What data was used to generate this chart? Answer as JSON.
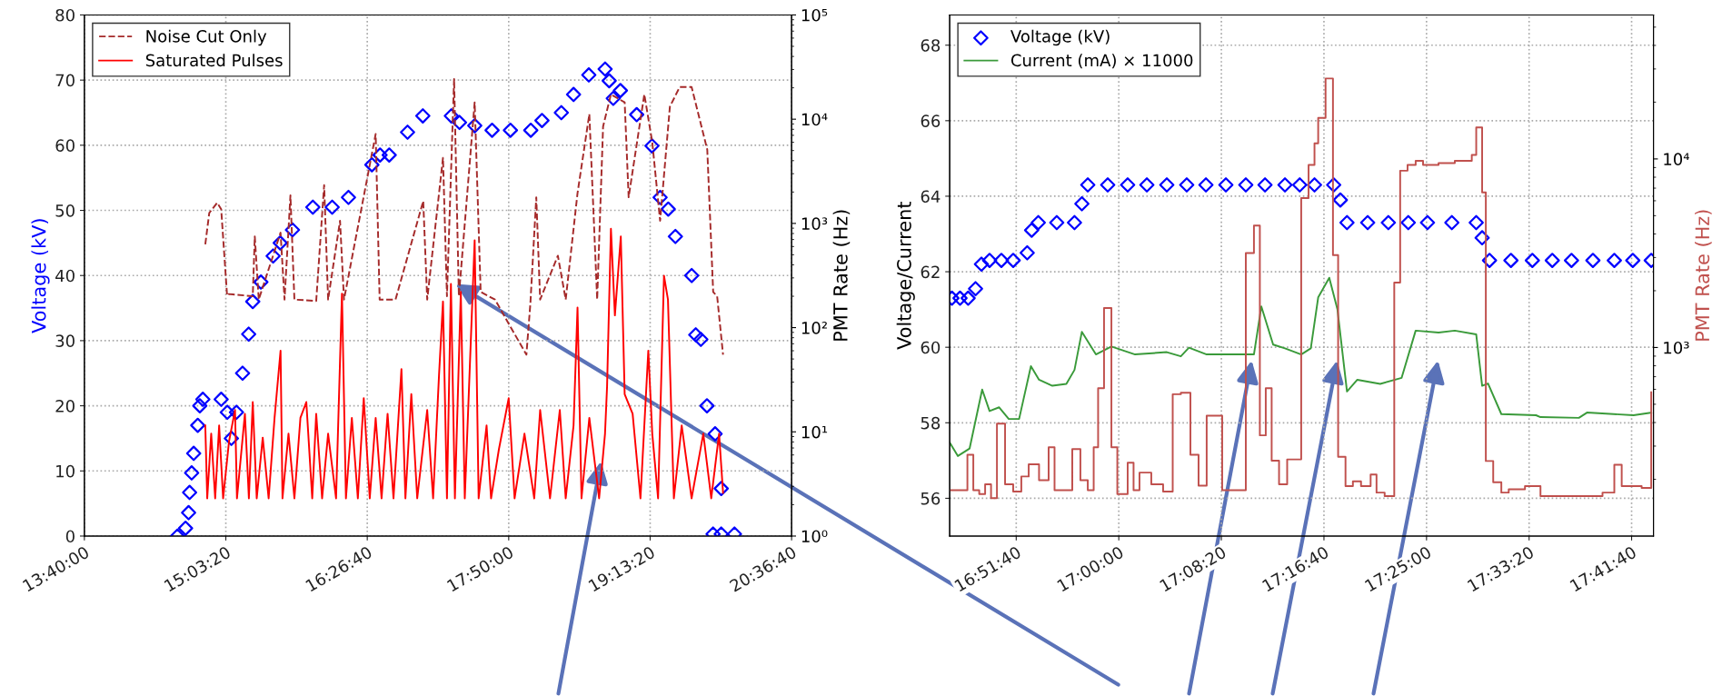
{
  "chart_data": [
    {
      "type": "scatter",
      "grid": true,
      "legend": "top left",
      "log": "y2",
      "ylabel": "Voltage (kV)",
      "y2label": "PMT Rate (Hz)",
      "xlim": [
        13.6667,
        20.6111
      ],
      "xticks": [
        {
          "value": 13.6667,
          "label": "13:40:00"
        },
        {
          "value": 15.0556,
          "label": "15:03:20"
        },
        {
          "value": 16.4444,
          "label": "16:26:40"
        },
        {
          "value": 17.8333,
          "label": "17:50:00"
        },
        {
          "value": 19.2222,
          "label": "19:13:20"
        },
        {
          "value": 20.6111,
          "label": "20:36:40"
        }
      ],
      "ylim": [
        0,
        80
      ],
      "yticks": [
        0,
        10,
        20,
        30,
        40,
        50,
        60,
        70,
        80
      ],
      "y2lim": [
        1,
        100000
      ],
      "y2ticks": [
        {
          "value": 1,
          "label": "10⁰"
        },
        {
          "value": 10,
          "label": "10¹"
        },
        {
          "value": 100,
          "label": "10²"
        },
        {
          "value": 1000,
          "label": "10³"
        },
        {
          "value": 10000,
          "label": "10⁴"
        },
        {
          "value": 100000,
          "label": "10⁵"
        }
      ],
      "series": [
        {
          "marker": "diamond",
          "color": "#0000ff",
          "x": [
            14.58,
            14.66,
            14.69,
            14.7,
            14.72,
            14.74,
            14.78,
            14.8,
            14.83,
            15.01,
            15.07,
            15.11,
            15.16,
            15.22,
            15.28,
            15.32,
            15.4,
            15.52,
            15.59,
            15.71,
            15.91,
            16.1,
            16.26,
            16.49,
            16.57,
            16.66,
            16.84,
            16.99,
            17.27,
            17.35,
            17.5,
            17.67,
            17.85,
            18.05,
            18.16,
            18.35,
            18.47,
            18.62,
            18.78,
            18.82,
            18.86,
            18.93,
            19.09,
            19.24,
            19.32,
            19.4,
            19.47,
            19.63,
            19.67,
            19.72,
            19.78,
            19.86,
            19.92,
            19.84,
            19.92,
            20.05
          ],
          "values": [
            0,
            1.2,
            3.6,
            6.7,
            9.7,
            12.7,
            17,
            20,
            21,
            21,
            19,
            15,
            19,
            25,
            31,
            36,
            39,
            43,
            45,
            47,
            50.5,
            50.5,
            52,
            57,
            58.5,
            58.5,
            62,
            64.5,
            64.5,
            63.5,
            63,
            62.3,
            62.3,
            62.3,
            63.8,
            65,
            67.8,
            70.8,
            71.7,
            69.9,
            67.2,
            68.4,
            64.7,
            59.9,
            52,
            50.2,
            46,
            40,
            30.9,
            30.2,
            20,
            15.7,
            7.3,
            0.3,
            0.3,
            0.3
          ]
        },
        {
          "type": "line",
          "name": "Noise Cut Only",
          "axis": "y2",
          "line_style": "dashed",
          "color": "#a52a2a",
          "x": [
            14.854,
            14.893,
            14.971,
            15.01,
            15.068,
            15.087,
            15.32,
            15.34,
            15.379,
            15.593,
            15.632,
            15.69,
            15.729,
            15.943,
            16.021,
            16.06,
            16.177,
            16.216,
            16.527,
            16.566,
            16.722,
            16.994,
            17.033,
            17.188,
            17.227,
            17.297,
            17.344,
            17.499,
            17.558,
            17.698,
            18.007,
            18.046,
            18.104,
            18.142,
            18.316,
            18.393,
            18.509,
            18.625,
            18.702,
            18.76,
            18.837,
            18.972,
            19.011,
            19.165,
            19.243,
            19.32,
            19.416,
            19.513,
            19.629,
            19.783,
            19.841,
            19.88,
            19.938
          ],
          "values": [
            630,
            1260,
            1580,
            1370,
            203,
            210,
            200,
            750,
            186,
            815,
            186,
            1860,
            186,
            180,
            2330,
            186,
            1060,
            186,
            7200,
            186,
            186,
            1640,
            186,
            4260,
            200,
            24300,
            200,
            14500,
            220,
            186,
            55,
            170,
            1780,
            186,
            490,
            186,
            1950,
            11200,
            186,
            8500,
            17300,
            14500,
            1780,
            17300,
            6000,
            1060,
            13200,
            20400,
            20400,
            5100,
            220,
            200,
            55
          ]
        },
        {
          "type": "line",
          "name": "Saturated Pulses",
          "axis": "y2",
          "line_style": "solid",
          "color": "#ff0000",
          "x": [
            14.854,
            14.873,
            14.912,
            14.951,
            14.99,
            15.029,
            15.087,
            15.146,
            15.165,
            15.243,
            15.282,
            15.32,
            15.359,
            15.418,
            15.476,
            15.534,
            15.593,
            15.612,
            15.671,
            15.729,
            15.788,
            15.846,
            15.904,
            15.943,
            16.001,
            16.06,
            16.138,
            16.196,
            16.235,
            16.293,
            16.352,
            16.41,
            16.469,
            16.527,
            16.585,
            16.644,
            16.702,
            16.78,
            16.819,
            16.877,
            16.935,
            17.033,
            17.091,
            17.149,
            17.188,
            17.227,
            17.266,
            17.305,
            17.363,
            17.402,
            17.499,
            17.538,
            17.616,
            17.66,
            17.737,
            17.833,
            17.891,
            17.988,
            18.084,
            18.142,
            18.239,
            18.335,
            18.393,
            18.47,
            18.509,
            18.548,
            18.625,
            18.721,
            18.779,
            18.799,
            18.837,
            18.876,
            18.934,
            18.972,
            19.05,
            19.127,
            19.204,
            19.243,
            19.3,
            19.358,
            19.397,
            19.455,
            19.532,
            19.629,
            19.744,
            19.822,
            19.899,
            19.938
          ],
          "values": [
            11.5,
            2.3,
            9.6,
            2.3,
            11.5,
            2.3,
            8.1,
            16.2,
            2.3,
            14.9,
            2.3,
            19.3,
            2.3,
            8.8,
            2.3,
            13.6,
            60,
            2.3,
            9.6,
            2.3,
            13.6,
            19.3,
            2.3,
            14.9,
            2.3,
            9.6,
            2.3,
            212,
            2.3,
            13.6,
            2.3,
            21,
            2.3,
            13.6,
            2.3,
            14.9,
            2.3,
            40,
            2.3,
            23,
            2.3,
            16.2,
            2.3,
            35,
            178,
            2.3,
            263,
            2.3,
            220,
            2.3,
            690,
            2.3,
            11.5,
            2.3,
            6.8,
            21,
            2.3,
            9.6,
            2.3,
            16.2,
            2.3,
            16.2,
            2.3,
            11.5,
            156,
            2.3,
            13.6,
            2.3,
            9.6,
            27,
            890,
            131,
            750,
            23,
            14.9,
            2.3,
            60,
            9.6,
            2.3,
            315,
            186,
            2.3,
            11.5,
            2.3,
            9.6,
            2.3,
            9.6,
            2.6
          ]
        }
      ]
    },
    {
      "type": "line",
      "grid": true,
      "legend": "top left",
      "log": "y2",
      "ylabel": "Voltage/Current",
      "y2label": "PMT Rate (Hz)",
      "xlim": [
        16.771,
        17.724
      ],
      "xticks": [
        {
          "value": 16.8611,
          "label": "16:51:40"
        },
        {
          "value": 17.0,
          "label": "17:00:00"
        },
        {
          "value": 17.1389,
          "label": "17:08:20"
        },
        {
          "value": 17.2778,
          "label": "17:16:40"
        },
        {
          "value": 17.4167,
          "label": "17:25:00"
        },
        {
          "value": 17.5556,
          "label": "17:33:20"
        },
        {
          "value": 17.6944,
          "label": "17:41:40"
        }
      ],
      "ylim": [
        55,
        68.8
      ],
      "yticks": [
        56,
        58,
        60,
        62,
        64,
        66,
        68
      ],
      "y2lim": [
        100,
        58000
      ],
      "y2ticks": [
        {
          "value": 1000,
          "label": "10³"
        },
        {
          "value": 10000,
          "label": "10⁴"
        }
      ],
      "series": [
        {
          "type": "scatter",
          "marker": "diamond",
          "name": "Voltage (kV)",
          "color": "#0000ff",
          "x": [
            16.774,
            16.785,
            16.796,
            16.806,
            16.814,
            16.825,
            16.841,
            16.857,
            16.876,
            16.882,
            16.891,
            16.916,
            16.94,
            16.95,
            16.958,
            16.985,
            17.012,
            17.038,
            17.065,
            17.092,
            17.118,
            17.145,
            17.172,
            17.198,
            17.225,
            17.245,
            17.265,
            17.291,
            17.3,
            17.309,
            17.337,
            17.365,
            17.392,
            17.418,
            17.451,
            17.484,
            17.492,
            17.502,
            17.531,
            17.56,
            17.587,
            17.613,
            17.642,
            17.671,
            17.696,
            17.721
          ],
          "values": [
            61.3,
            61.3,
            61.3,
            61.55,
            62.2,
            62.3,
            62.3,
            62.3,
            62.5,
            63.1,
            63.3,
            63.3,
            63.3,
            63.8,
            64.3,
            64.3,
            64.3,
            64.3,
            64.3,
            64.3,
            64.3,
            64.3,
            64.3,
            64.3,
            64.3,
            64.3,
            64.3,
            64.3,
            63.9,
            63.3,
            63.3,
            63.3,
            63.3,
            63.3,
            63.3,
            63.3,
            62.9,
            62.3,
            62.3,
            62.3,
            62.3,
            62.3,
            62.3,
            62.3,
            62.3,
            62.3
          ]
        },
        {
          "name": "Current (mA) × 11000",
          "line_style": "solid",
          "color": "#3a9a3a",
          "x": [
            16.771,
            16.782,
            16.798,
            16.815,
            16.825,
            16.838,
            16.851,
            16.865,
            16.881,
            16.892,
            16.91,
            16.929,
            16.94,
            16.95,
            16.969,
            16.99,
            17.022,
            17.065,
            17.084,
            17.095,
            17.119,
            17.172,
            17.183,
            17.193,
            17.209,
            17.225,
            17.247,
            17.26,
            17.27,
            17.285,
            17.296,
            17.309,
            17.323,
            17.354,
            17.383,
            17.402,
            17.433,
            17.455,
            17.484,
            17.492,
            17.5,
            17.518,
            17.565,
            17.571,
            17.623,
            17.634,
            17.697,
            17.721
          ],
          "values": [
            57.48,
            57.12,
            57.32,
            58.88,
            58.31,
            58.41,
            58.1,
            58.1,
            59.5,
            59.14,
            58.98,
            59.03,
            59.4,
            60.41,
            59.81,
            60.02,
            59.81,
            59.87,
            59.76,
            59.99,
            59.81,
            59.81,
            59.81,
            61.08,
            60.07,
            59.97,
            59.81,
            59.97,
            61.32,
            61.84,
            61.01,
            58.83,
            59.14,
            59.03,
            59.19,
            60.44,
            60.39,
            60.44,
            60.34,
            58.98,
            59.04,
            58.23,
            58.2,
            58.15,
            58.13,
            58.27,
            58.2,
            58.27
          ]
        },
        {
          "type": "step",
          "axis": "y2",
          "color": "#c0504d",
          "x": [
            16.771,
            16.795,
            16.803,
            16.811,
            16.819,
            16.827,
            16.835,
            16.846,
            16.857,
            16.868,
            16.878,
            16.892,
            16.905,
            16.913,
            16.937,
            16.948,
            16.958,
            16.966,
            16.972,
            16.98,
            16.99,
            16.998,
            17.012,
            17.02,
            17.028,
            17.044,
            17.06,
            17.073,
            17.084,
            17.097,
            17.108,
            17.119,
            17.14,
            17.172,
            17.183,
            17.191,
            17.199,
            17.207,
            17.217,
            17.228,
            17.247,
            17.257,
            17.265,
            17.27,
            17.28,
            17.29,
            17.297,
            17.307,
            17.317,
            17.328,
            17.341,
            17.349,
            17.36,
            17.373,
            17.381,
            17.391,
            17.402,
            17.412,
            17.433,
            17.455,
            17.478,
            17.484,
            17.492,
            17.497,
            17.507,
            17.518,
            17.528,
            17.55,
            17.571,
            17.602,
            17.634,
            17.655,
            17.671,
            17.681,
            17.708,
            17.721
          ],
          "values": [
            175,
            270,
            175,
            167,
            188,
            159,
            395,
            188,
            172,
            207,
            240,
            198,
            296,
            175,
            289,
            198,
            175,
            296,
            608,
            1620,
            296,
            167,
            245,
            175,
            217,
            188,
            172,
            565,
            575,
            270,
            185,
            435,
            175,
            3170,
            4430,
            342,
            608,
            251,
            188,
            255,
            6200,
            9300,
            12100,
            16500,
            26700,
            3090,
            263,
            184,
            195,
            184,
            212,
            170,
            163,
            2210,
            8660,
            9300,
            9770,
            9300,
            9500,
            9770,
            10500,
            14700,
            6640,
            250,
            193,
            170,
            177,
            184,
            163,
            163,
            163,
            170,
            239,
            184,
            180,
            579
          ]
        }
      ]
    }
  ]
}
